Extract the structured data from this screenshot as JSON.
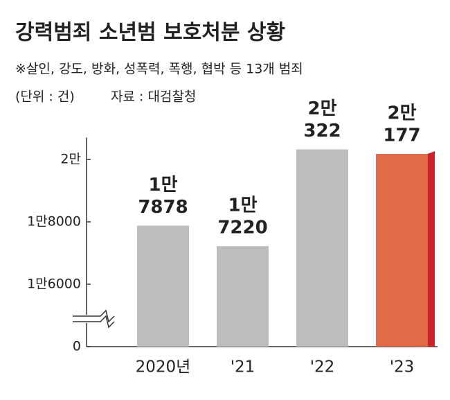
{
  "chart_data": {
    "type": "bar",
    "title": "강력범죄 소년범 보호처분 상황",
    "subtitle": "※살인, 강도, 방화, 성폭력, 폭행, 협박 등 13개 범죄",
    "unit_note": "(단위 : 건)",
    "source": "자료 : 대검찰청",
    "categories": [
      "2020년",
      "'21",
      "'22",
      "'23"
    ],
    "values": [
      17878,
      17220,
      20322,
      20177
    ],
    "value_labels": [
      [
        "1만",
        "7878"
      ],
      [
        "1만",
        "7220"
      ],
      [
        "2만",
        "322"
      ],
      [
        "2만",
        "177"
      ]
    ],
    "colors": [
      "#bdbdbd",
      "#bdbdbd",
      "#bdbdbd",
      "#e06a45"
    ],
    "highlight_side_color": "#c8232c",
    "ylim": [
      0,
      20700
    ],
    "yticks": [
      0,
      {
        "value": 16000,
        "label": "1만6000"
      },
      {
        "value": 18000,
        "label": "1만8000"
      },
      {
        "value": 20000,
        "label": "2만"
      }
    ],
    "axis_break": true
  }
}
